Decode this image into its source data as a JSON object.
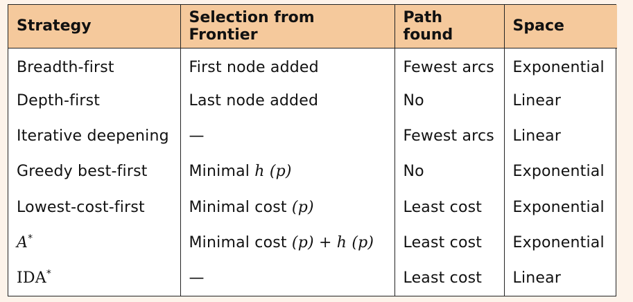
{
  "table": {
    "headers": [
      "Strategy",
      "Selection from Frontier",
      "Path found",
      "Space"
    ],
    "rows": [
      {
        "strategy": "Breadth-first",
        "selection": "First node added",
        "path": "Fewest arcs",
        "space": "Exponential"
      },
      {
        "strategy": "Depth-first",
        "selection": "Last node added",
        "path": "No",
        "space": "Linear"
      },
      {
        "strategy": "Iterative deepening",
        "selection": "—",
        "path": "Fewest arcs",
        "space": "Linear"
      },
      {
        "strategy": "Greedy best-first",
        "selection_prefix": "Minimal ",
        "selection_math": "h (p)",
        "path": "No",
        "space": "Exponential"
      },
      {
        "strategy": "Lowest-cost-first",
        "selection_prefix": "Minimal cost ",
        "selection_math": "(p)",
        "path": "Least cost",
        "space": "Exponential"
      },
      {
        "strategy_math": "A",
        "strategy_sup": "*",
        "selection_prefix": "Minimal cost ",
        "selection_math": "(p) + h (p)",
        "path": "Least cost",
        "space": "Exponential"
      },
      {
        "strategy_math": "IDA",
        "strategy_sup": "*",
        "selection": "—",
        "path": "Least cost",
        "space": "Linear"
      }
    ]
  },
  "colors": {
    "header_bg": "#f5c99c",
    "page_bg": "#fdf3ea",
    "table_bg": "#ffffff",
    "border": "#222222"
  }
}
